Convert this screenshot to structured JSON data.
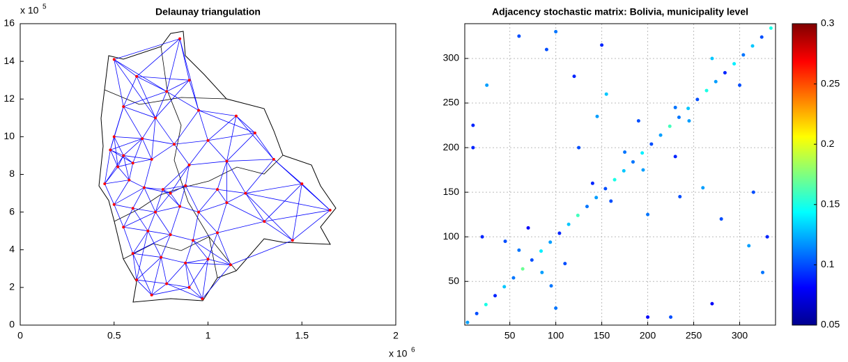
{
  "chart_data": [
    {
      "type": "map",
      "title": "Delaunay triangulation",
      "xlim": [
        0,
        2
      ],
      "xticks": [
        0,
        0.5,
        1,
        1.5,
        2
      ],
      "ylim": [
        0,
        16
      ],
      "yticks": [
        0,
        2,
        4,
        6,
        8,
        10,
        12,
        14,
        16
      ],
      "x_multiplier": {
        "base": "x 10",
        "exponent": 6
      },
      "y_multiplier": {
        "base": "x 10",
        "exponent": 5
      },
      "edge_color": "#0000ff",
      "node_color": "#ff0000",
      "border_color": "#000000",
      "x": [
        0.5,
        0.85,
        0.62,
        0.78,
        0.9,
        0.55,
        0.72,
        0.95,
        1.15,
        0.5,
        0.65,
        0.82,
        1.0,
        1.25,
        0.48,
        0.55,
        0.6,
        0.52,
        0.7,
        0.9,
        1.1,
        1.35,
        0.45,
        0.58,
        0.66,
        0.76,
        0.8,
        0.88,
        1.05,
        1.2,
        1.5,
        0.5,
        0.6,
        0.72,
        0.85,
        0.95,
        1.1,
        1.3,
        1.65,
        0.55,
        0.68,
        0.8,
        0.92,
        1.05,
        1.45,
        0.6,
        0.75,
        0.88,
        1.0,
        1.12,
        0.62,
        0.78,
        0.9,
        0.97,
        0.7
      ],
      "y": [
        14.1,
        15.2,
        13.2,
        12.4,
        13.0,
        11.6,
        11.0,
        11.4,
        11.1,
        10.0,
        9.9,
        9.6,
        9.8,
        10.2,
        9.3,
        9.0,
        8.6,
        8.4,
        8.8,
        8.5,
        8.7,
        8.8,
        7.5,
        7.7,
        7.3,
        7.2,
        7.0,
        7.4,
        7.2,
        7.0,
        7.5,
        6.4,
        6.2,
        6.0,
        6.3,
        6.0,
        6.5,
        5.5,
        6.1,
        5.2,
        5.0,
        4.8,
        4.5,
        4.9,
        4.5,
        3.8,
        3.6,
        3.3,
        3.5,
        3.2,
        2.4,
        2.2,
        2.0,
        1.4,
        1.6
      ]
    },
    {
      "type": "scatter",
      "title": "Adjacency stochastic matrix: Bolivia, municipality level",
      "xlim": [
        1,
        339
      ],
      "xticks": [
        50,
        100,
        150,
        200,
        250,
        300
      ],
      "ylim": [
        1,
        339
      ],
      "yticks": [
        50,
        100,
        150,
        200,
        250,
        300
      ],
      "grid": true,
      "colormap": "jet",
      "clim": [
        0.05,
        0.3
      ],
      "cticks": [
        0.05,
        0.1,
        0.15,
        0.2,
        0.25,
        0.3
      ],
      "x": [
        4,
        14,
        24,
        34,
        44,
        54,
        64,
        74,
        84,
        94,
        104,
        114,
        124,
        134,
        144,
        154,
        164,
        174,
        184,
        194,
        204,
        214,
        224,
        234,
        244,
        254,
        264,
        274,
        284,
        294,
        304,
        314,
        324,
        334,
        10,
        225,
        25,
        270,
        60,
        325,
        150,
        315,
        155,
        260,
        45,
        95,
        70,
        110,
        85,
        60,
        140,
        160,
        175,
        195,
        190,
        230,
        270,
        300,
        245,
        230,
        120,
        280,
        200,
        10,
        125,
        200,
        310,
        90,
        330,
        100,
        235,
        145,
        100,
        20
      ],
      "y": [
        4,
        14,
        24,
        34,
        44,
        54,
        64,
        74,
        84,
        94,
        104,
        114,
        124,
        134,
        144,
        154,
        164,
        174,
        184,
        194,
        204,
        214,
        224,
        234,
        244,
        254,
        264,
        274,
        284,
        294,
        304,
        314,
        324,
        334,
        225,
        10,
        270,
        25,
        325,
        60,
        315,
        150,
        260,
        155,
        95,
        45,
        110,
        70,
        60,
        85,
        160,
        140,
        195,
        175,
        230,
        190,
        300,
        270,
        230,
        245,
        280,
        120,
        10,
        200,
        200,
        125,
        90,
        310,
        100,
        330,
        145,
        235,
        20,
        100
      ],
      "values": [
        0.12,
        0.1,
        0.15,
        0.09,
        0.13,
        0.11,
        0.17,
        0.1,
        0.14,
        0.12,
        0.09,
        0.13,
        0.16,
        0.11,
        0.12,
        0.1,
        0.15,
        0.13,
        0.11,
        0.14,
        0.1,
        0.12,
        0.16,
        0.11,
        0.13,
        0.1,
        0.15,
        0.12,
        0.09,
        0.14,
        0.11,
        0.13,
        0.1,
        0.15,
        0.09,
        0.1,
        0.12,
        0.08,
        0.1,
        0.11,
        0.09,
        0.1,
        0.13,
        0.12,
        0.1,
        0.11,
        0.08,
        0.1,
        0.12,
        0.11,
        0.09,
        0.1,
        0.11,
        0.12,
        0.1,
        0.09,
        0.13,
        0.1,
        0.12,
        0.11,
        0.09,
        0.1,
        0.08,
        0.09,
        0.1,
        0.11,
        0.12,
        0.1,
        0.09,
        0.11,
        0.1,
        0.12,
        0.11,
        0.09
      ]
    }
  ]
}
